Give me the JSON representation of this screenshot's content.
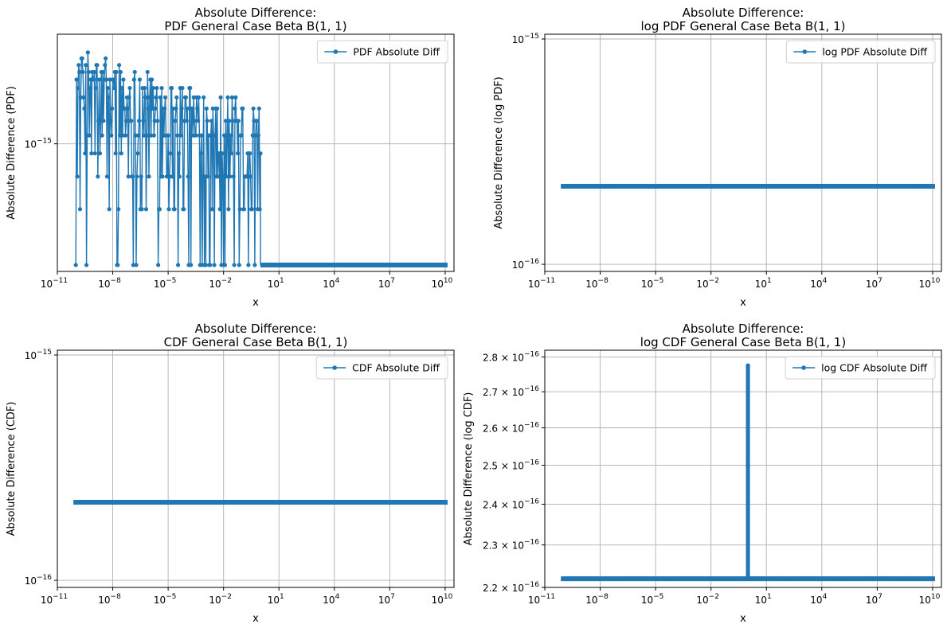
{
  "figure": {
    "background": "#ffffff",
    "series_color": "#1f77b4",
    "grid_color": "#b0b0b0"
  },
  "chart_data": [
    {
      "id": "pdf",
      "type": "line",
      "title_line1": "Absolute Difference:",
      "title_line2": "PDF General Case Beta B(1, 1)",
      "xlabel": "x",
      "ylabel": "Absolute Difference (PDF)",
      "xscale": "log",
      "yscale": "log",
      "xlim": [
        1e-11,
        30000000000.0
      ],
      "ylim": [
        2.05e-16,
        3.9e-15
      ],
      "xticks": [
        1e-11,
        1e-08,
        1e-05,
        0.01,
        10.0,
        10000.0,
        10000000.0,
        10000000000.0
      ],
      "xtick_labels": [
        [
          "10",
          "−11"
        ],
        [
          "10",
          "−8"
        ],
        [
          "10",
          "−5"
        ],
        [
          "10",
          "−2"
        ],
        [
          "10",
          "1"
        ],
        [
          "10",
          "4"
        ],
        [
          "10",
          "7"
        ],
        [
          "10",
          "10"
        ]
      ],
      "yticks": [
        1e-15
      ],
      "ytick_labels": [
        [
          "10",
          "−15"
        ]
      ],
      "grid": true,
      "legend_position": "upper right",
      "series": [
        {
          "name": "PDF Absolute Diff",
          "marker": "circle",
          "pattern": "noisy",
          "x_range": [
            1e-10,
            10000000000.0
          ],
          "y_levels": [
            2.22e-16,
            4.44e-16,
            6.66e-16,
            8.88e-16,
            1.11e-15,
            1.33e-15,
            1.55e-15,
            1.78e-15,
            2e-15,
            2.22e-15,
            2.44e-15,
            2.66e-15,
            2.89e-15,
            3.11e-15
          ],
          "noisy_until_x": 1,
          "constant_after": 2.22e-16
        }
      ]
    },
    {
      "id": "logpdf",
      "type": "line",
      "title_line1": "Absolute Difference:",
      "title_line2": "log PDF General Case Beta B(1, 1)",
      "xlabel": "x",
      "ylabel": "Absolute Difference (log PDF)",
      "xscale": "log",
      "yscale": "log",
      "xlim": [
        1e-11,
        30000000000.0
      ],
      "ylim": [
        9.3e-17,
        1.05e-15
      ],
      "xticks": [
        1e-11,
        1e-08,
        1e-05,
        0.01,
        10.0,
        10000.0,
        10000000.0,
        10000000000.0
      ],
      "xtick_labels": [
        [
          "10",
          "−11"
        ],
        [
          "10",
          "−8"
        ],
        [
          "10",
          "−5"
        ],
        [
          "10",
          "−2"
        ],
        [
          "10",
          "1"
        ],
        [
          "10",
          "4"
        ],
        [
          "10",
          "7"
        ],
        [
          "10",
          "10"
        ]
      ],
      "yticks": [
        1e-16,
        1e-15
      ],
      "ytick_labels": [
        [
          "10",
          "−16"
        ],
        [
          "10",
          "−15"
        ]
      ],
      "grid": true,
      "legend_position": "upper right",
      "series": [
        {
          "name": "log PDF Absolute Diff",
          "marker": "circle",
          "pattern": "constant",
          "x_range": [
            1e-10,
            10000000000.0
          ],
          "value": 2.22e-16
        }
      ]
    },
    {
      "id": "cdf",
      "type": "line",
      "title_line1": "Absolute Difference:",
      "title_line2": "CDF General Case Beta B(1, 1)",
      "xlabel": "x",
      "ylabel": "Absolute Difference (CDF)",
      "xscale": "log",
      "yscale": "log",
      "xlim": [
        1e-11,
        30000000000.0
      ],
      "ylim": [
        9.3e-17,
        1.05e-15
      ],
      "xticks": [
        1e-11,
        1e-08,
        1e-05,
        0.01,
        10.0,
        10000.0,
        10000000.0,
        10000000000.0
      ],
      "xtick_labels": [
        [
          "10",
          "−11"
        ],
        [
          "10",
          "−8"
        ],
        [
          "10",
          "−5"
        ],
        [
          "10",
          "−2"
        ],
        [
          "10",
          "1"
        ],
        [
          "10",
          "4"
        ],
        [
          "10",
          "7"
        ],
        [
          "10",
          "10"
        ]
      ],
      "yticks": [
        1e-16,
        1e-15
      ],
      "ytick_labels": [
        [
          "10",
          "−16"
        ],
        [
          "10",
          "−15"
        ]
      ],
      "grid": true,
      "legend_position": "upper right",
      "series": [
        {
          "name": "CDF Absolute Diff",
          "marker": "circle",
          "pattern": "constant",
          "x_range": [
            1e-10,
            10000000000.0
          ],
          "value": 2.22e-16
        }
      ]
    },
    {
      "id": "logcdf",
      "type": "line",
      "title_line1": "Absolute Difference:",
      "title_line2": "log CDF General Case Beta B(1, 1)",
      "xlabel": "x",
      "ylabel": "Absolute Difference (log CDF)",
      "xscale": "log",
      "yscale": "log",
      "xlim": [
        1e-11,
        30000000000.0
      ],
      "ylim": [
        2.2e-16,
        2.82e-16
      ],
      "xticks": [
        1e-11,
        1e-08,
        1e-05,
        0.01,
        10.0,
        10000.0,
        10000000.0,
        10000000000.0
      ],
      "xtick_labels": [
        [
          "10",
          "−11"
        ],
        [
          "10",
          "−8"
        ],
        [
          "10",
          "−5"
        ],
        [
          "10",
          "−2"
        ],
        [
          "10",
          "1"
        ],
        [
          "10",
          "4"
        ],
        [
          "10",
          "7"
        ],
        [
          "10",
          "10"
        ]
      ],
      "yticks": [
        2.2e-16,
        2.3e-16,
        2.4e-16,
        2.5e-16,
        2.6e-16,
        2.7e-16,
        2.8e-16
      ],
      "ytick_labels": [
        [
          "2.2 × 10",
          "−16"
        ],
        [
          "2.3 × 10",
          "−16"
        ],
        [
          "2.4 × 10",
          "−16"
        ],
        [
          "2.5 × 10",
          "−16"
        ],
        [
          "2.6 × 10",
          "−16"
        ],
        [
          "2.7 × 10",
          "−16"
        ],
        [
          "2.8 × 10",
          "−16"
        ]
      ],
      "grid": true,
      "legend_position": "upper right",
      "series": [
        {
          "name": "log CDF Absolute Diff",
          "marker": "circle",
          "pattern": "constant_with_spike",
          "x_range": [
            1e-10,
            10000000000.0
          ],
          "value": 2.22e-16,
          "spike_points": [
            {
              "x": 1.0,
              "y": 2.775e-16
            },
            {
              "x": 1.0,
              "y": 2.5e-16
            }
          ]
        }
      ]
    }
  ]
}
